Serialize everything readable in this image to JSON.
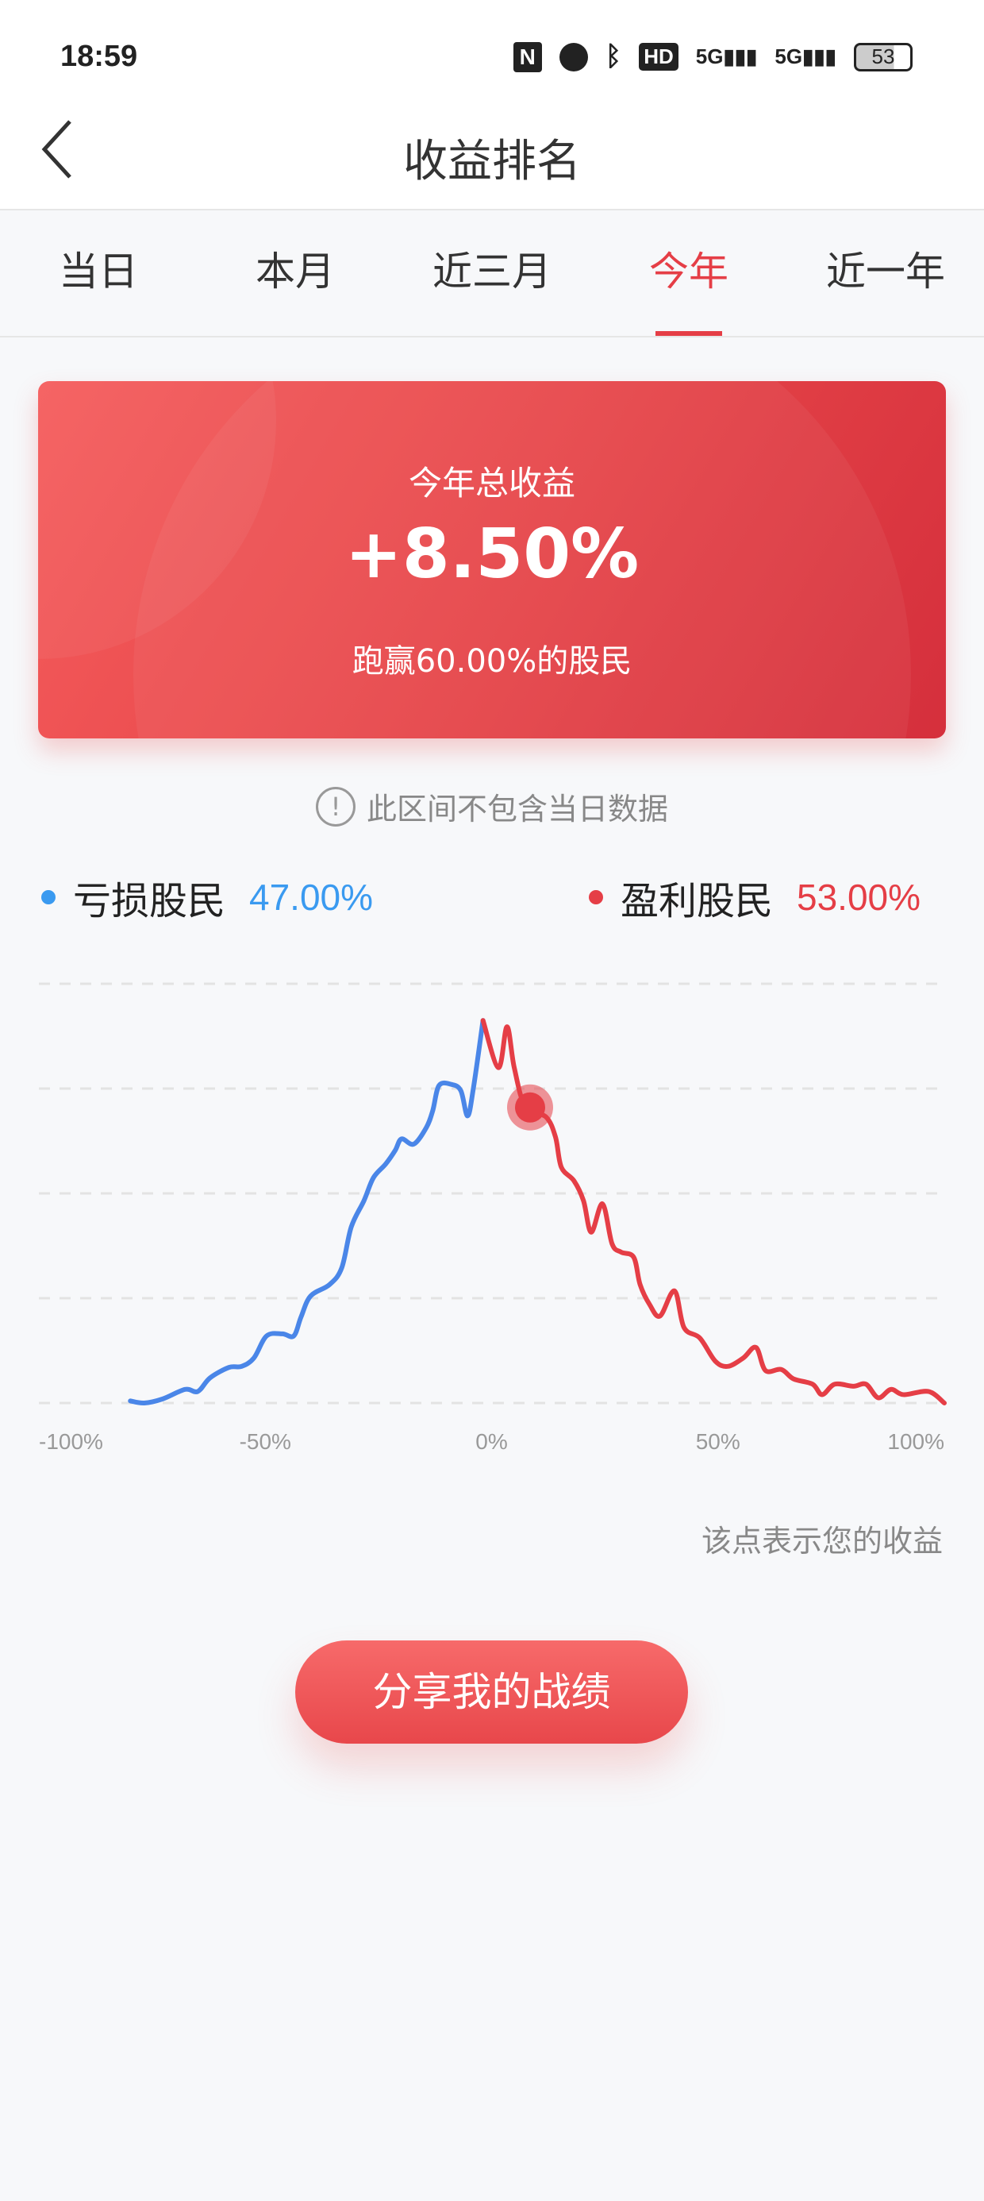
{
  "status_bar": {
    "time": "18:59",
    "icons": [
      "nfc-icon",
      "alarm-icon",
      "bluetooth-icon",
      "hd-icon",
      "signal-5g-icon",
      "signal-5g-icon"
    ],
    "hd_label": "HD",
    "network_label": "5G",
    "battery": "53"
  },
  "header": {
    "title": "收益排名",
    "back_icon": "chevron-left-icon"
  },
  "tabs": [
    {
      "label": "当日"
    },
    {
      "label": "本月"
    },
    {
      "label": "近三月"
    },
    {
      "label": "今年",
      "active": true
    },
    {
      "label": "近一年"
    }
  ],
  "summary": {
    "label": "今年总收益",
    "value": "+8.50%",
    "subtitle": "跑赢60.00%的股民"
  },
  "notice": {
    "icon": "exclamation-circle-icon",
    "text": "此区间不包含当日数据"
  },
  "legend": {
    "loss": {
      "label": "亏损股民",
      "value": "47.00%",
      "color": "#3a9af0"
    },
    "profit": {
      "label": "盈利股民",
      "value": "53.00%",
      "color": "#e53e46"
    }
  },
  "chart_data": {
    "type": "line",
    "xlabel": "",
    "ylabel": "",
    "xlim": [
      -100,
      100
    ],
    "ylim": [
      0,
      4
    ],
    "grid": true,
    "x_ticks": [
      "-100%",
      "-50%",
      "0%",
      "50%",
      "100%"
    ],
    "series": [
      {
        "color": "#4a86e8",
        "points": [
          [
            -79.8,
            0.02
          ],
          [
            -76.7,
            0
          ],
          [
            -72.6,
            0.04
          ],
          [
            -67.7,
            0.13
          ],
          [
            -64.9,
            0.11
          ],
          [
            -62.2,
            0.24
          ],
          [
            -58,
            0.34
          ],
          [
            -55.2,
            0.35
          ],
          [
            -52.5,
            0.43
          ],
          [
            -49.7,
            0.64
          ],
          [
            -46.2,
            0.66
          ],
          [
            -43.7,
            0.64
          ],
          [
            -42.1,
            0.82
          ],
          [
            -40,
            1.02
          ],
          [
            -35.8,
            1.13
          ],
          [
            -33.1,
            1.29
          ],
          [
            -31,
            1.68
          ],
          [
            -28.2,
            1.93
          ],
          [
            -26.1,
            2.15
          ],
          [
            -23.4,
            2.28
          ],
          [
            -21.3,
            2.41
          ],
          [
            -19.9,
            2.52
          ],
          [
            -17.2,
            2.47
          ],
          [
            -14.4,
            2.63
          ],
          [
            -13,
            2.79
          ],
          [
            -11.6,
            3.03
          ],
          [
            -8.9,
            3.04
          ],
          [
            -6.8,
            2.98
          ],
          [
            -5.3,
            2.74
          ],
          [
            -4,
            3.01
          ],
          [
            -1.9,
            3.65
          ]
        ]
      },
      {
        "color": "#e53e46",
        "points": [
          [
            -1.9,
            3.65
          ],
          [
            1.5,
            3.2
          ],
          [
            3.4,
            3.59
          ],
          [
            5,
            3.2
          ],
          [
            7.5,
            2.82
          ],
          [
            12,
            2.73
          ],
          [
            14.1,
            2.54
          ],
          [
            15.4,
            2.25
          ],
          [
            18.2,
            2.12
          ],
          [
            20.3,
            1.93
          ],
          [
            22,
            1.63
          ],
          [
            24.5,
            1.9
          ],
          [
            26.6,
            1.52
          ],
          [
            28.6,
            1.44
          ],
          [
            31.4,
            1.39
          ],
          [
            32.8,
            1.13
          ],
          [
            34.9,
            0.94
          ],
          [
            37.2,
            0.83
          ],
          [
            40.4,
            1.07
          ],
          [
            42.5,
            0.72
          ],
          [
            46,
            0.62
          ],
          [
            49.4,
            0.4
          ],
          [
            52.2,
            0.35
          ],
          [
            55.6,
            0.43
          ],
          [
            58.4,
            0.53
          ],
          [
            60.5,
            0.31
          ],
          [
            64,
            0.32
          ],
          [
            66.7,
            0.23
          ],
          [
            70.9,
            0.18
          ],
          [
            73,
            0.08
          ],
          [
            75.8,
            0.18
          ],
          [
            79.9,
            0.16
          ],
          [
            82.7,
            0.18
          ],
          [
            85.4,
            0.05
          ],
          [
            88.2,
            0.13
          ],
          [
            91,
            0.08
          ],
          [
            96.5,
            0.11
          ],
          [
            100,
            0
          ]
        ]
      }
    ],
    "marker": {
      "x": 8.5,
      "y": 2.82,
      "color": "#e53e46"
    }
  },
  "chart_hint": "该点表示您的收益",
  "share_button": "分享我的战绩"
}
